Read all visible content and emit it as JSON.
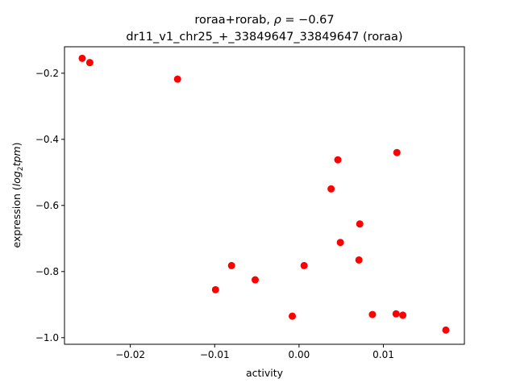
{
  "chart_data": {
    "type": "scatter",
    "title_line1_prefix": "roraa+rorab, ",
    "title_rho_symbol": "ρ",
    "title_rho_value": " = −0.67",
    "title_line2": "dr11_v1_chr25_+_33849647_33849647 (roraa)",
    "xlabel": "activity",
    "ylabel_prefix": "expression (",
    "ylabel_log": "log",
    "ylabel_sub": "2",
    "ylabel_tpm": "tpm",
    "ylabel_suffix": ")",
    "xlim": [
      -0.0278,
      0.0196
    ],
    "ylim": [
      -1.02,
      -0.12
    ],
    "xticks": [
      {
        "value": -0.02,
        "label": "−0.02"
      },
      {
        "value": -0.01,
        "label": "−0.01"
      },
      {
        "value": 0.0,
        "label": "0.00"
      },
      {
        "value": 0.01,
        "label": "0.01"
      }
    ],
    "yticks": [
      {
        "value": -0.2,
        "label": "−0.2"
      },
      {
        "value": -0.4,
        "label": "−0.4"
      },
      {
        "value": -0.6,
        "label": "−0.6"
      },
      {
        "value": -0.8,
        "label": "−0.8"
      },
      {
        "value": -1.0,
        "label": "−1.0"
      }
    ],
    "marker_color": "#ff0000",
    "points": [
      {
        "x": -0.0257,
        "y": -0.155
      },
      {
        "x": -0.0248,
        "y": -0.168
      },
      {
        "x": -0.0144,
        "y": -0.218
      },
      {
        "x": -0.0099,
        "y": -0.855
      },
      {
        "x": -0.008,
        "y": -0.782
      },
      {
        "x": -0.0052,
        "y": -0.825
      },
      {
        "x": -0.0008,
        "y": -0.935
      },
      {
        "x": 0.0006,
        "y": -0.782
      },
      {
        "x": 0.0038,
        "y": -0.55
      },
      {
        "x": 0.0046,
        "y": -0.462
      },
      {
        "x": 0.0049,
        "y": -0.712
      },
      {
        "x": 0.0071,
        "y": -0.765
      },
      {
        "x": 0.0072,
        "y": -0.656
      },
      {
        "x": 0.0087,
        "y": -0.93
      },
      {
        "x": 0.0115,
        "y": -0.928
      },
      {
        "x": 0.0116,
        "y": -0.44
      },
      {
        "x": 0.0123,
        "y": -0.932
      },
      {
        "x": 0.0174,
        "y": -0.977
      }
    ]
  }
}
